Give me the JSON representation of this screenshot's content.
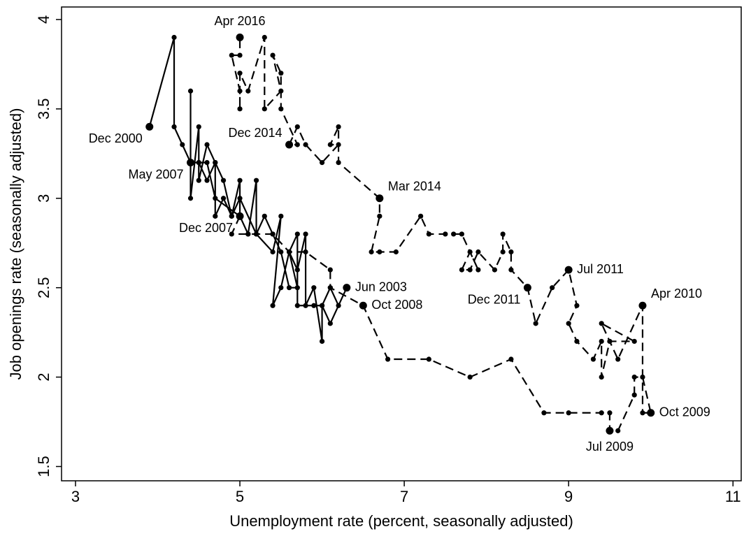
{
  "chart_data": {
    "type": "line",
    "x_label": "Unemployment rate (percent, seasonally adjusted)",
    "y_label": "Job openings rate (seasonally adjusted)",
    "xlim": [
      2.83,
      11.1
    ],
    "ylim": [
      1.42,
      4.07
    ],
    "xticks": [
      3,
      5,
      7,
      9,
      11
    ],
    "yticks": [
      1.5,
      2,
      2.5,
      3,
      3.5,
      4
    ],
    "grid": false,
    "series": [
      {
        "color": "#000000",
        "dash": false,
        "x": [
          3.9,
          4.2,
          4.2,
          4.3,
          4.4,
          4.4,
          4.4,
          4.5,
          4.5,
          4.6,
          4.7,
          4.7,
          4.8,
          4.9,
          5.0,
          5.0,
          5.1,
          5.2,
          5.2,
          5.4,
          5.5,
          5.4,
          5.5,
          5.6,
          5.7,
          5.8,
          5.8,
          5.9,
          6.0,
          6.0,
          6.1,
          6.2,
          6.3,
          6.1,
          6.0,
          5.9,
          5.7,
          5.7,
          5.6,
          5.7,
          5.6,
          5.5,
          5.4,
          5.3,
          5.2,
          5.0,
          4.9,
          4.8,
          4.7,
          4.6,
          4.5,
          4.4,
          4.5,
          4.6,
          4.7,
          5.0
        ],
        "values": [
          3.4,
          3.9,
          3.4,
          3.3,
          3.2,
          3.6,
          3.0,
          3.4,
          3.1,
          3.3,
          3.2,
          2.9,
          3.0,
          2.9,
          3.1,
          2.9,
          2.8,
          3.1,
          2.8,
          2.7,
          2.9,
          2.4,
          2.5,
          2.7,
          2.6,
          2.8,
          2.4,
          2.5,
          2.2,
          2.4,
          2.5,
          2.4,
          2.5,
          2.3,
          2.4,
          2.4,
          2.4,
          2.8,
          2.7,
          2.5,
          2.5,
          2.7,
          2.8,
          2.9,
          2.8,
          3.0,
          2.9,
          3.1,
          3.2,
          3.1,
          3.2,
          3.2,
          3.2,
          3.2,
          3.0,
          2.9
        ]
      },
      {
        "color": "#000000",
        "dash": true,
        "x": [
          5.0,
          4.9,
          5.1,
          5.4,
          5.6,
          5.8,
          6.1,
          6.1,
          6.5,
          6.8,
          7.3,
          7.8,
          8.3,
          8.7,
          9.0,
          9.4,
          9.5,
          9.5,
          9.6,
          9.8,
          9.8,
          9.9,
          10.0,
          9.9,
          9.9,
          9.6,
          9.4,
          9.8,
          9.5,
          9.4,
          9.4,
          9.3,
          9.1,
          9.0,
          9.1,
          9.0,
          8.8,
          8.6,
          8.5,
          8.3,
          8.3,
          8.2,
          8.2,
          8.1,
          7.9,
          7.8,
          7.7,
          7.8,
          7.9,
          7.7,
          7.6,
          7.5,
          7.3,
          7.2,
          6.9,
          6.7,
          6.6,
          6.7,
          6.7,
          6.2,
          6.2,
          6.1,
          6.2,
          6.0,
          5.8,
          5.7,
          5.6,
          5.7,
          5.5,
          5.5,
          5.4,
          5.5,
          5.3,
          5.3,
          5.1,
          5.0,
          5.0,
          5.0,
          4.9,
          5.0,
          5.0
        ],
        "values": [
          2.9,
          2.8,
          2.8,
          2.8,
          2.7,
          2.7,
          2.6,
          2.5,
          2.4,
          2.1,
          2.1,
          2.0,
          2.1,
          1.8,
          1.8,
          1.8,
          1.8,
          1.7,
          1.7,
          1.9,
          2.0,
          2.0,
          1.8,
          1.8,
          2.4,
          2.1,
          2.3,
          2.2,
          2.2,
          2.0,
          2.2,
          2.1,
          2.2,
          2.3,
          2.4,
          2.6,
          2.5,
          2.3,
          2.5,
          2.6,
          2.7,
          2.8,
          2.7,
          2.6,
          2.7,
          2.6,
          2.6,
          2.7,
          2.6,
          2.8,
          2.8,
          2.8,
          2.8,
          2.9,
          2.7,
          2.7,
          2.7,
          2.9,
          3.0,
          3.2,
          3.4,
          3.3,
          3.3,
          3.2,
          3.3,
          3.4,
          3.3,
          3.3,
          3.5,
          3.7,
          3.8,
          3.6,
          3.5,
          3.9,
          3.6,
          3.7,
          3.5,
          3.6,
          3.8,
          3.8,
          3.9
        ]
      }
    ],
    "annotations": [
      {
        "text": "Dec 2000",
        "x": 3.9,
        "y": 3.4,
        "anchor": "left-below"
      },
      {
        "text": "Apr 2016",
        "x": 5.0,
        "y": 3.9,
        "anchor": "above"
      },
      {
        "text": "Dec 2014",
        "x": 5.6,
        "y": 3.3,
        "anchor": "left-above"
      },
      {
        "text": "May 2007",
        "x": 4.4,
        "y": 3.2,
        "anchor": "left-below"
      },
      {
        "text": "Mar 2014",
        "x": 6.7,
        "y": 3.0,
        "anchor": "right-above"
      },
      {
        "text": "Dec 2007",
        "x": 5.0,
        "y": 2.9,
        "anchor": "left-below"
      },
      {
        "text": "Jun 2003",
        "x": 6.3,
        "y": 2.5,
        "anchor": "right"
      },
      {
        "text": "Oct 2008",
        "x": 6.5,
        "y": 2.4,
        "anchor": "right"
      },
      {
        "text": "Dec 2011",
        "x": 8.5,
        "y": 2.5,
        "anchor": "left-below"
      },
      {
        "text": "Jul 2011",
        "x": 9.0,
        "y": 2.6,
        "anchor": "right"
      },
      {
        "text": "Apr 2010",
        "x": 9.9,
        "y": 2.4,
        "anchor": "right-above"
      },
      {
        "text": "Oct 2009",
        "x": 10.0,
        "y": 1.8,
        "anchor": "right"
      },
      {
        "text": "Jul 2009",
        "x": 9.5,
        "y": 1.7,
        "anchor": "below"
      }
    ]
  }
}
